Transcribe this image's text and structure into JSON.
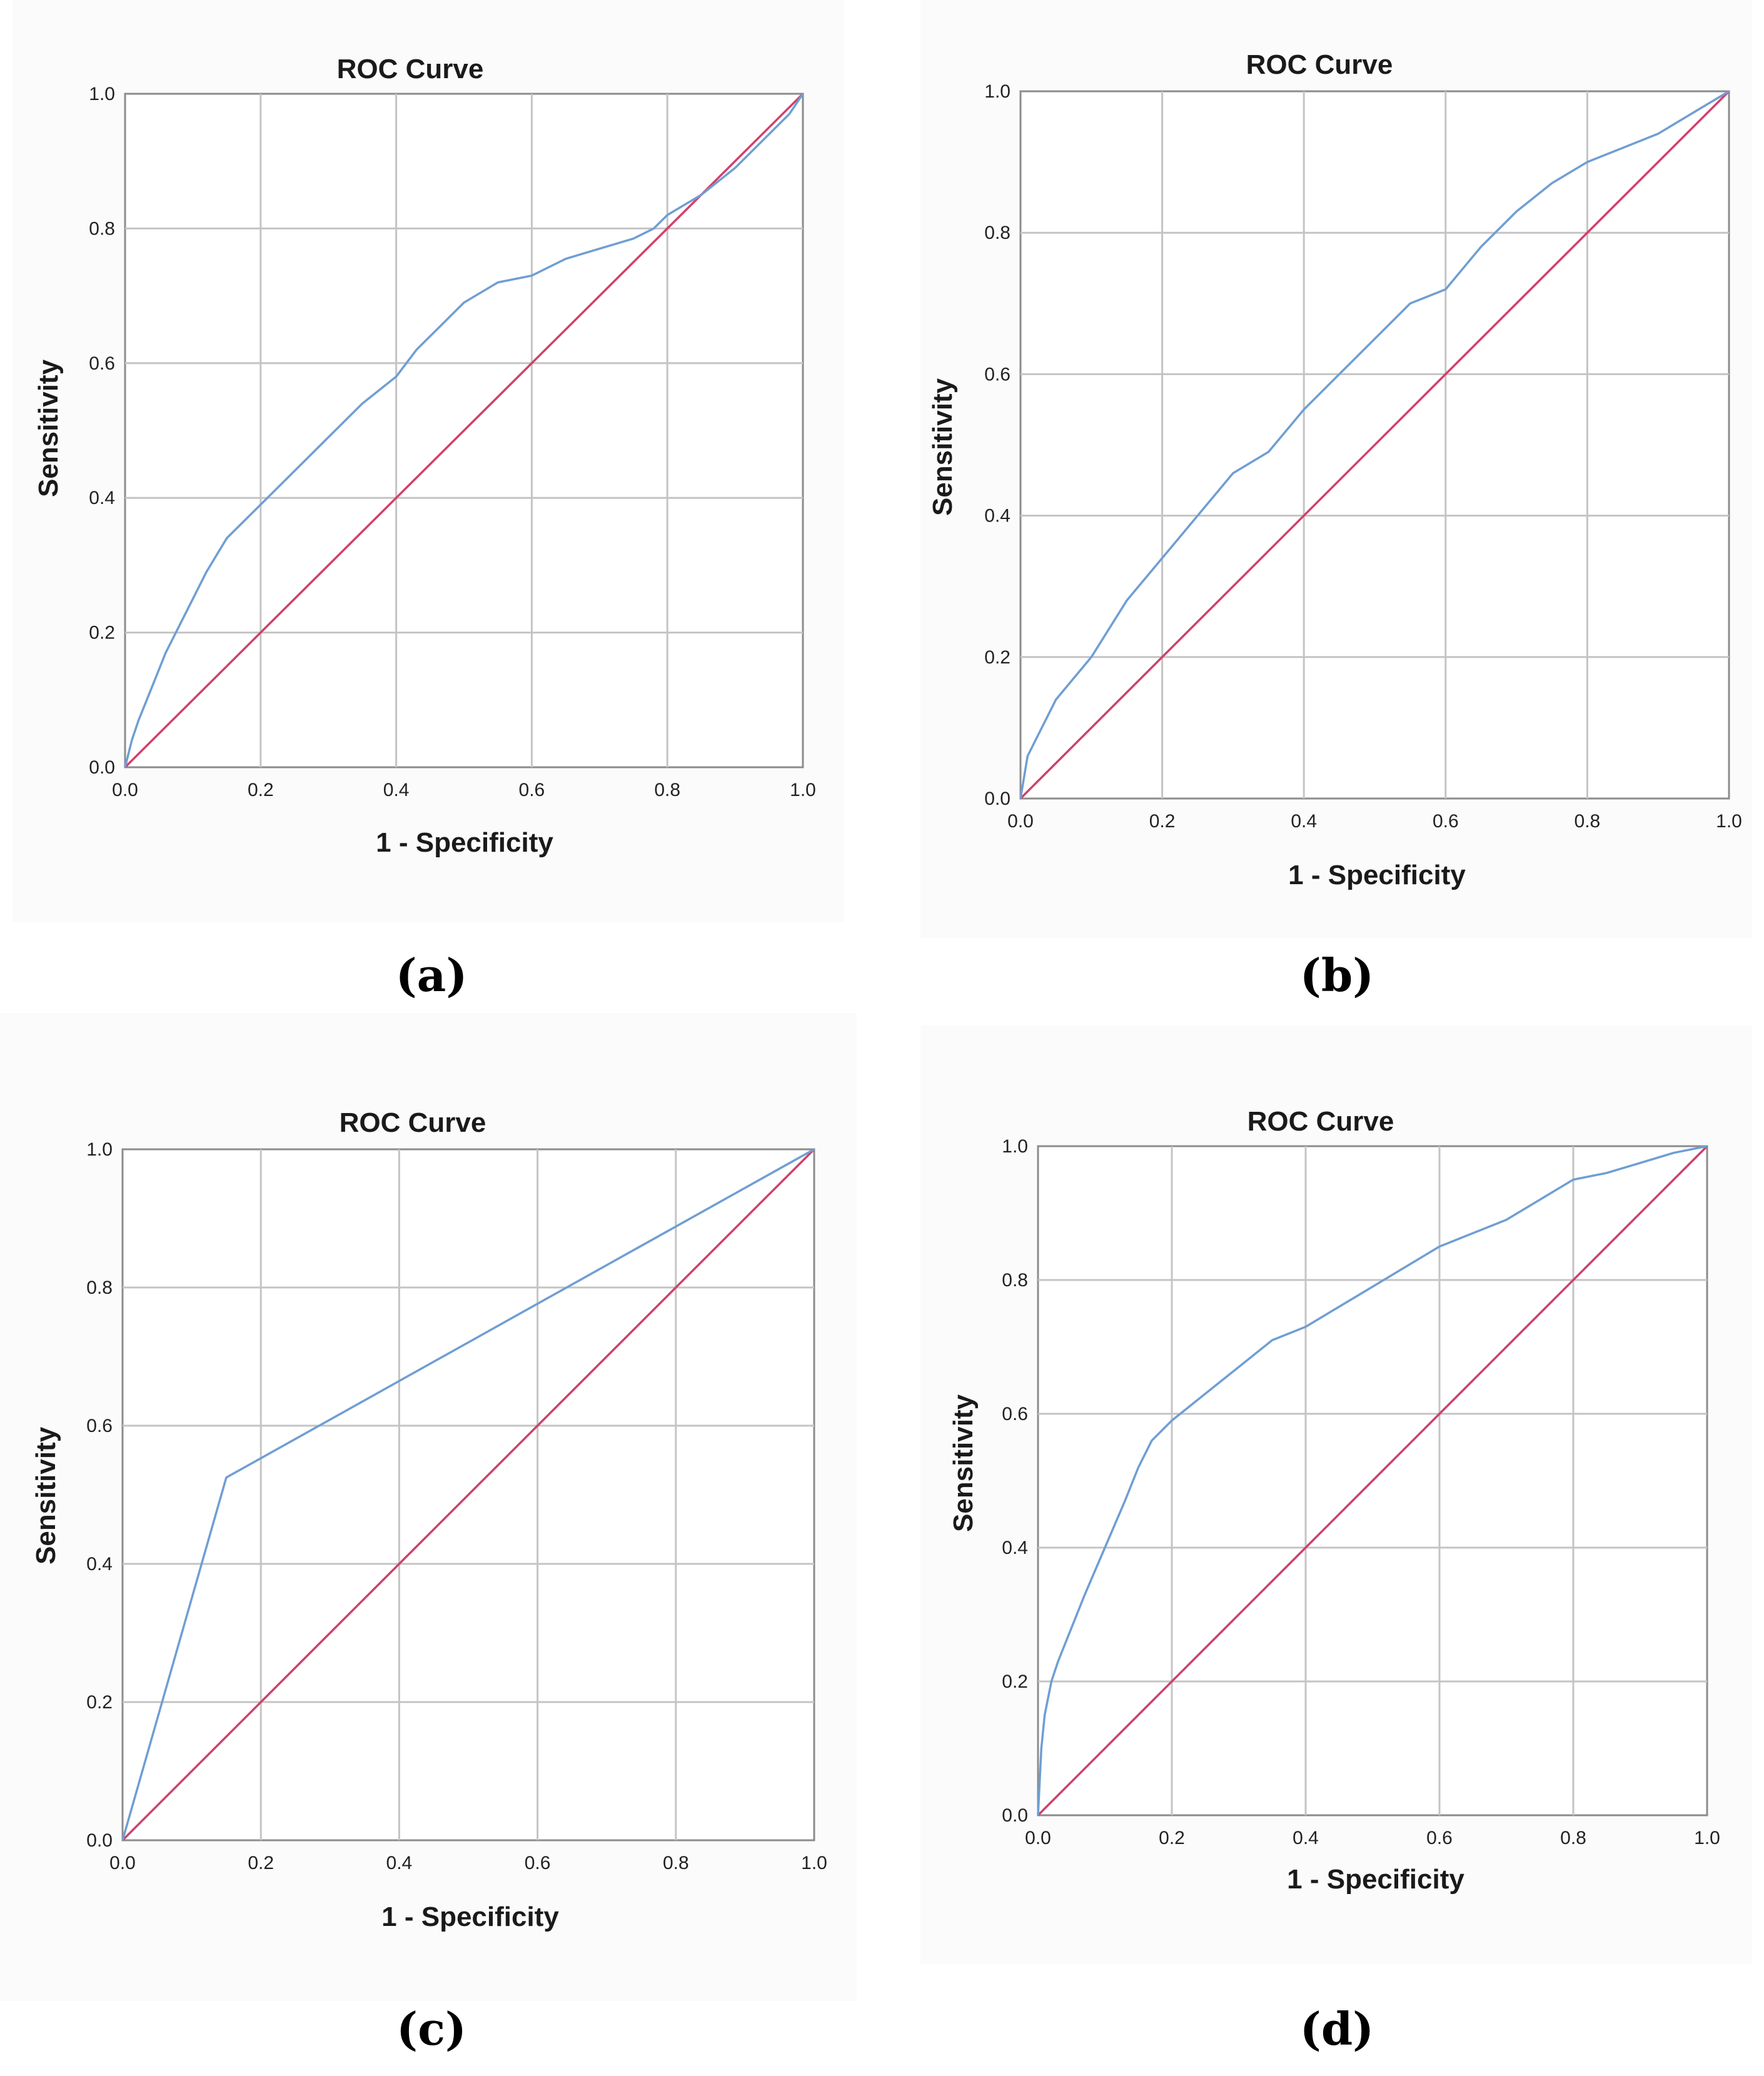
{
  "figure": {
    "colors": {
      "roc_curve": "#6f9ed3",
      "reference_line": "#d2406a",
      "grid": "#c4c4c4",
      "frame": "#8c8c8c"
    }
  },
  "chart_data": [
    {
      "type": "line",
      "panel_label": "(a)",
      "title": "ROC Curve",
      "xlabel": "1 - Specificity",
      "ylabel": "Sensitivity",
      "xlim": [
        0,
        1
      ],
      "ylim": [
        0,
        1
      ],
      "xticks": [
        "0.0",
        "0.2",
        "0.4",
        "0.6",
        "0.8",
        "1.0"
      ],
      "yticks": [
        "0.0",
        "0.2",
        "0.4",
        "0.6",
        "0.8",
        "1.0"
      ],
      "grid": true,
      "series": [
        {
          "name": "ROC curve",
          "color": "#6f9ed3",
          "x": [
            0,
            0.01,
            0.02,
            0.04,
            0.06,
            0.08,
            0.1,
            0.12,
            0.15,
            0.18,
            0.2,
            0.25,
            0.3,
            0.35,
            0.4,
            0.43,
            0.47,
            0.5,
            0.55,
            0.6,
            0.65,
            0.7,
            0.75,
            0.78,
            0.8,
            0.85,
            0.9,
            0.95,
            0.98,
            1.0
          ],
          "y": [
            0,
            0.04,
            0.07,
            0.12,
            0.17,
            0.21,
            0.25,
            0.29,
            0.34,
            0.37,
            0.39,
            0.44,
            0.49,
            0.54,
            0.58,
            0.62,
            0.66,
            0.69,
            0.72,
            0.73,
            0.755,
            0.77,
            0.785,
            0.8,
            0.82,
            0.85,
            0.89,
            0.94,
            0.97,
            1.0
          ]
        },
        {
          "name": "Reference Line",
          "color": "#d2406a",
          "x": [
            0,
            1
          ],
          "y": [
            0,
            1
          ]
        }
      ]
    },
    {
      "type": "line",
      "panel_label": "(b)",
      "title": "ROC Curve",
      "xlabel": "1 - Specificity",
      "ylabel": "Sensitivity",
      "xlim": [
        0,
        1
      ],
      "ylim": [
        0,
        1
      ],
      "xticks": [
        "0.0",
        "0.2",
        "0.4",
        "0.6",
        "0.8",
        "1.0"
      ],
      "yticks": [
        "0.0",
        "0.2",
        "0.4",
        "0.6",
        "0.8",
        "1.0"
      ],
      "grid": true,
      "series": [
        {
          "name": "ROC curve",
          "color": "#6f9ed3",
          "x": [
            0,
            0.01,
            0.03,
            0.05,
            0.1,
            0.15,
            0.2,
            0.25,
            0.3,
            0.35,
            0.4,
            0.45,
            0.5,
            0.55,
            0.6,
            0.65,
            0.7,
            0.75,
            0.8,
            0.85,
            0.9,
            0.95,
            1.0
          ],
          "y": [
            0,
            0.06,
            0.1,
            0.14,
            0.2,
            0.28,
            0.34,
            0.4,
            0.46,
            0.49,
            0.55,
            0.6,
            0.65,
            0.7,
            0.72,
            0.78,
            0.83,
            0.87,
            0.9,
            0.92,
            0.94,
            0.97,
            1.0
          ]
        },
        {
          "name": "Reference Line",
          "color": "#d2406a",
          "x": [
            0,
            1
          ],
          "y": [
            0,
            1
          ]
        }
      ]
    },
    {
      "type": "line",
      "panel_label": "(c)",
      "title": "ROC Curve",
      "xlabel": "1 - Specificity",
      "ylabel": "Sensitivity",
      "xlim": [
        0,
        1
      ],
      "ylim": [
        0,
        1
      ],
      "xticks": [
        "0.0",
        "0.2",
        "0.4",
        "0.6",
        "0.8",
        "1.0"
      ],
      "yticks": [
        "0.0",
        "0.2",
        "0.4",
        "0.6",
        "0.8",
        "1.0"
      ],
      "grid": true,
      "series": [
        {
          "name": "ROC curve",
          "color": "#6f9ed3",
          "x": [
            0,
            0.15,
            1.0
          ],
          "y": [
            0,
            0.525,
            1.0
          ]
        },
        {
          "name": "Reference Line",
          "color": "#d2406a",
          "x": [
            0,
            1
          ],
          "y": [
            0,
            1
          ]
        }
      ]
    },
    {
      "type": "line",
      "panel_label": "(d)",
      "title": "ROC Curve",
      "xlabel": "1 - Specificity",
      "ylabel": "Sensitivity",
      "xlim": [
        0,
        1
      ],
      "ylim": [
        0,
        1
      ],
      "xticks": [
        "0.0",
        "0.2",
        "0.4",
        "0.6",
        "0.8",
        "1.0"
      ],
      "yticks": [
        "0.0",
        "0.2",
        "0.4",
        "0.6",
        "0.8",
        "1.0"
      ],
      "grid": true,
      "series": [
        {
          "name": "ROC curve",
          "color": "#6f9ed3",
          "x": [
            0,
            0.005,
            0.01,
            0.02,
            0.03,
            0.05,
            0.07,
            0.1,
            0.13,
            0.15,
            0.17,
            0.2,
            0.25,
            0.3,
            0.35,
            0.4,
            0.45,
            0.5,
            0.55,
            0.6,
            0.65,
            0.7,
            0.75,
            0.8,
            0.85,
            0.9,
            0.95,
            1.0
          ],
          "y": [
            0,
            0.1,
            0.15,
            0.2,
            0.23,
            0.28,
            0.33,
            0.4,
            0.47,
            0.52,
            0.56,
            0.59,
            0.63,
            0.67,
            0.71,
            0.73,
            0.76,
            0.79,
            0.82,
            0.85,
            0.87,
            0.89,
            0.92,
            0.95,
            0.96,
            0.975,
            0.99,
            1.0
          ]
        },
        {
          "name": "Reference Line",
          "color": "#d2406a",
          "x": [
            0,
            1
          ],
          "y": [
            0,
            1
          ]
        }
      ]
    }
  ]
}
